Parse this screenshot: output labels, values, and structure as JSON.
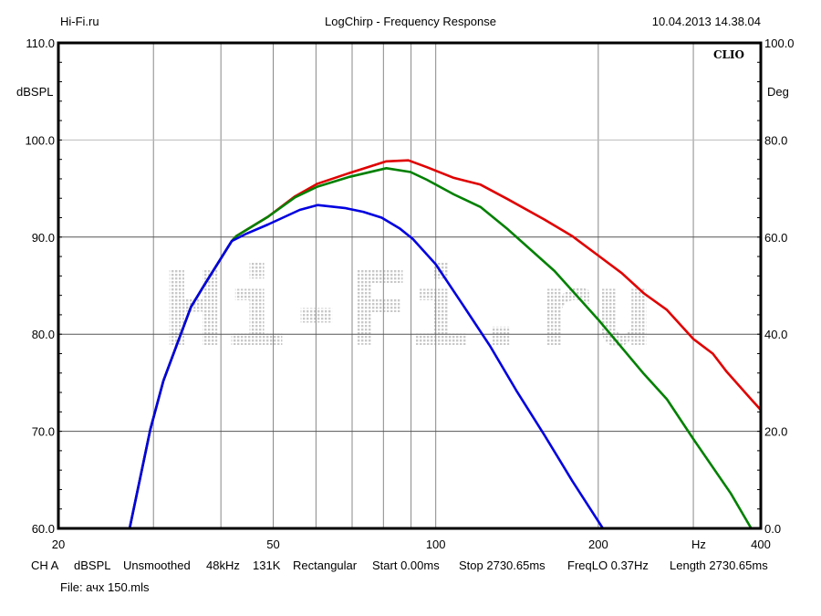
{
  "header": {
    "site": "Hi-Fi.ru",
    "title": "LogChirp - Frequency Response",
    "datetime": "10.04.2013 14.38.04"
  },
  "brand": "CLIO",
  "watermark": "Hi-Fi.ru",
  "footer": {
    "params": [
      "CH A",
      "dBSPL",
      "Unsmoothed",
      "48kHz",
      "131K",
      "Rectangular",
      "Start 0.00ms",
      "Stop 2730.65ms",
      "FreqLO 0.37Hz",
      "Length 2730.65ms"
    ],
    "file": "File: ачх 150.mls"
  },
  "chart_data": {
    "type": "line",
    "title": "LogChirp - Frequency Response",
    "xlabel": "Hz",
    "ylabel": "dBSPL",
    "y2label": "Deg",
    "xscale": "log",
    "xlim": [
      20,
      400
    ],
    "ylim": [
      60,
      110
    ],
    "y2lim": [
      0,
      100
    ],
    "x_ticks": [
      {
        "v": 20,
        "label": "20"
      },
      {
        "v": 50,
        "label": "50"
      },
      {
        "v": 100,
        "label": "100"
      },
      {
        "v": 200,
        "label": "200"
      },
      {
        "v": 400,
        "label": "400"
      }
    ],
    "x_grid": [
      30,
      40,
      50,
      60,
      70,
      80,
      90,
      100,
      200,
      300
    ],
    "y_ticks": [
      {
        "v": 60,
        "label": "60.0"
      },
      {
        "v": 70,
        "label": "70.0"
      },
      {
        "v": 80,
        "label": "80.0"
      },
      {
        "v": 90,
        "label": "90.0"
      },
      {
        "v": 100,
        "label": "100.0"
      },
      {
        "v": 110,
        "label": "110.0"
      }
    ],
    "y2_ticks": [
      "0.0",
      "20.0",
      "40.0",
      "60.0",
      "80.0",
      "100.0"
    ],
    "grid": true,
    "series": [
      {
        "name": "red",
        "color": "#e00000",
        "x": [
          27.1,
          29.6,
          31.3,
          35.2,
          37.3,
          41.9,
          42.7,
          48.9,
          54.9,
          60.4,
          69.2,
          81,
          89,
          96.3,
          108,
          121,
          136,
          159,
          179,
          200,
          221,
          243,
          268,
          300,
          326,
          345,
          381,
          400
        ],
        "y": [
          60,
          70.2,
          75.2,
          82.8,
          85.1,
          89.6,
          90.1,
          92.1,
          94.2,
          95.5,
          96.6,
          97.8,
          97.9,
          97.2,
          96.1,
          95.4,
          93.9,
          91.8,
          90.1,
          88.1,
          86.3,
          84.2,
          82.5,
          79.5,
          78.0,
          76.2,
          73.5,
          72.2
        ]
      },
      {
        "name": "green",
        "color": "#008000",
        "x": [
          27.1,
          29.6,
          31.3,
          35.2,
          37.3,
          41.9,
          42.7,
          48.9,
          54.9,
          60.4,
          69.2,
          81,
          89.8,
          96.3,
          108,
          121,
          136,
          166,
          200,
          243,
          268,
          300,
          352,
          384
        ],
        "y": [
          60,
          70.2,
          75.2,
          82.8,
          85.1,
          89.6,
          90.1,
          92.1,
          94.1,
          95.2,
          96.2,
          97.1,
          96.7,
          95.9,
          94.4,
          93.1,
          90.8,
          86.5,
          81.5,
          75.9,
          73.3,
          69.2,
          63.6,
          60
        ]
      },
      {
        "name": "blue",
        "color": "#0000e0",
        "x": [
          27.1,
          29.6,
          31.3,
          35.2,
          37.3,
          41.9,
          44.4,
          48.9,
          56,
          60.4,
          67.8,
          73.4,
          79.4,
          85.7,
          90.7,
          100,
          112,
          126,
          141,
          159,
          179,
          204
        ],
        "y": [
          60,
          70.2,
          75.2,
          82.8,
          85.1,
          89.6,
          90.3,
          91.3,
          92.8,
          93.3,
          93.0,
          92.6,
          92.0,
          90.9,
          89.8,
          87.2,
          83.1,
          78.8,
          74.2,
          69.6,
          64.9,
          60
        ]
      }
    ]
  }
}
